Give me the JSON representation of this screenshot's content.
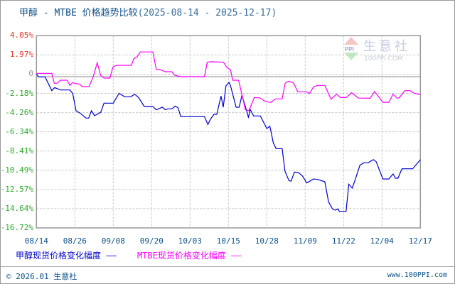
{
  "title": {
    "main": "甲醇 - MTBE 价格趋势比较",
    "range": "(2025-08-14 - 2025-12-17)"
  },
  "watermark": {
    "cn": "生意社",
    "en": "100PPI.COM",
    "badge": "PPI"
  },
  "legend": {
    "series1": "甲醇现货价格变化幅度",
    "series2": "MTBE现货价格变化幅度"
  },
  "footer": {
    "left": "© 2026.01 生意社",
    "right": "www.100PPI.com"
  },
  "colors": {
    "series1": "#0000cc",
    "series2": "#ff00ff",
    "positive_label": "#e8322d",
    "negative_label": "#2fa82f",
    "zero_label": "#999999",
    "grid": "#c8c8c8",
    "axis": "#999999"
  },
  "chart_data": {
    "type": "line",
    "title": "甲醇 - MTBE 价格趋势比较(2025-08-14 - 2025-12-17)",
    "xlabel": "",
    "ylabel": "",
    "ylim": [
      -16.72,
      4.05
    ],
    "yticks": [
      "4.05%",
      "1.97%",
      "0",
      "-2.18%",
      "-4.26%",
      "-6.34%",
      "-8.41%",
      "-10.49%",
      "-12.57%",
      "-14.64%",
      "-16.72%"
    ],
    "ytick_values": [
      4.05,
      1.97,
      0,
      -2.18,
      -4.26,
      -6.34,
      -8.41,
      -10.49,
      -12.57,
      -14.64,
      -16.72
    ],
    "categories": [
      "08/14",
      "08/26",
      "09/08",
      "09/20",
      "10/03",
      "10/15",
      "10/28",
      "11/09",
      "11/22",
      "12/04",
      "12/17"
    ],
    "x_unit": "days since 2025-08-14 (0..125)",
    "grid": true,
    "legend_position": "bottom",
    "series": [
      {
        "name": "甲醇现货价格变化幅度",
        "color": "#0000cc",
        "points": [
          [
            0,
            -0.09
          ],
          [
            0.7,
            -0.4
          ],
          [
            2.8,
            -0.4
          ],
          [
            5,
            -1.89
          ],
          [
            5.9,
            -1.55
          ],
          [
            7.8,
            -1.81
          ],
          [
            10.9,
            -1.81
          ],
          [
            11.8,
            -2.2
          ],
          [
            12.9,
            -4.06
          ],
          [
            14.5,
            -4.39
          ],
          [
            16.1,
            -4.85
          ],
          [
            17,
            -4.85
          ],
          [
            17.9,
            -4.06
          ],
          [
            18.9,
            -4.6
          ],
          [
            20.9,
            -4.24
          ],
          [
            22,
            -3.24
          ],
          [
            25,
            -3.24
          ],
          [
            26.9,
            -2.17
          ],
          [
            28.7,
            -2.55
          ],
          [
            30.7,
            -2.55
          ],
          [
            32,
            -2.27
          ],
          [
            33.3,
            -2.66
          ],
          [
            35.1,
            -3.6
          ],
          [
            37.9,
            -3.6
          ],
          [
            39,
            -3.96
          ],
          [
            41,
            -3.68
          ],
          [
            41.9,
            -3.93
          ],
          [
            42.8,
            -3.85
          ],
          [
            44.1,
            -3.85
          ],
          [
            45.2,
            -3.55
          ],
          [
            46.1,
            -3.75
          ],
          [
            47,
            -4.7
          ],
          [
            54.7,
            -4.7
          ],
          [
            55.8,
            -5.54
          ],
          [
            56.7,
            -4.96
          ],
          [
            57.8,
            -4.44
          ],
          [
            58.7,
            -4.44
          ],
          [
            60.1,
            -2.47
          ],
          [
            60.8,
            -3.68
          ],
          [
            61.7,
            -1.37
          ],
          [
            62.7,
            -0.99
          ],
          [
            63.2,
            -1.37
          ],
          [
            65,
            -3.68
          ],
          [
            66,
            -3.68
          ],
          [
            66.9,
            -2.4
          ],
          [
            68.3,
            -3.93
          ],
          [
            69,
            -4.75
          ],
          [
            69.6,
            -3.93
          ],
          [
            70.7,
            -4.62
          ],
          [
            72.9,
            -4.62
          ],
          [
            75,
            -5.98
          ],
          [
            76,
            -5.73
          ],
          [
            77.1,
            -7.51
          ],
          [
            78,
            -8.15
          ],
          [
            80,
            -8.15
          ],
          [
            80.9,
            -10.58
          ],
          [
            82.2,
            -11.6
          ],
          [
            82.9,
            -11.68
          ],
          [
            84,
            -10.68
          ],
          [
            85.3,
            -10.74
          ],
          [
            86.6,
            -11.1
          ],
          [
            88,
            -11.86
          ],
          [
            90.2,
            -11.43
          ],
          [
            91.5,
            -11.48
          ],
          [
            93.9,
            -11.73
          ],
          [
            95.1,
            -13.9
          ],
          [
            96.4,
            -14.67
          ],
          [
            97.3,
            -14.8
          ],
          [
            98.2,
            -14.67
          ],
          [
            98.6,
            -14.93
          ],
          [
            100.8,
            -14.93
          ],
          [
            101.7,
            -11.99
          ],
          [
            102.8,
            -12.42
          ],
          [
            103.9,
            -11.4
          ],
          [
            105.3,
            -9.95
          ],
          [
            106.6,
            -9.68
          ],
          [
            108,
            -9.68
          ],
          [
            109.7,
            -9.35
          ],
          [
            110.6,
            -9.56
          ],
          [
            112.8,
            -11.43
          ],
          [
            114.7,
            -11.43
          ],
          [
            116.1,
            -10.89
          ],
          [
            116.9,
            -11.35
          ],
          [
            117.7,
            -11.35
          ],
          [
            119,
            -10.33
          ],
          [
            122.5,
            -10.33
          ],
          [
            125,
            -9.35
          ]
        ]
      },
      {
        "name": "MTBE现货价格变化幅度",
        "color": "#ff00ff",
        "points": [
          [
            0,
            -0.02
          ],
          [
            5,
            -0.02
          ],
          [
            5.8,
            -1.09
          ],
          [
            6.7,
            -1.09
          ],
          [
            7.8,
            -0.76
          ],
          [
            10,
            -0.76
          ],
          [
            10.9,
            -1.32
          ],
          [
            11.8,
            -1.01
          ],
          [
            12.7,
            -1.14
          ],
          [
            14,
            -1.17
          ],
          [
            14.9,
            -1.45
          ],
          [
            17.1,
            -1.45
          ],
          [
            18.5,
            -0.35
          ],
          [
            19.8,
            1.13
          ],
          [
            20.9,
            -0.24
          ],
          [
            22,
            -0.53
          ],
          [
            23.9,
            -0.53
          ],
          [
            24.9,
            0.67
          ],
          [
            26,
            0.85
          ],
          [
            30.9,
            0.85
          ],
          [
            31.7,
            1.56
          ],
          [
            32.8,
            1.77
          ],
          [
            33.8,
            2.29
          ],
          [
            37.9,
            2.29
          ],
          [
            39,
            0.41
          ],
          [
            40.1,
            0.41
          ],
          [
            41.9,
            0.16
          ],
          [
            44.1,
            0.16
          ],
          [
            45,
            -0.22
          ],
          [
            46.8,
            -0.38
          ],
          [
            54.7,
            -0.38
          ],
          [
            55.6,
            1.18
          ],
          [
            56.9,
            1.24
          ],
          [
            60.9,
            1.18
          ],
          [
            62,
            0.62
          ],
          [
            63.2,
            0.36
          ],
          [
            63.9,
            -0.76
          ],
          [
            65.8,
            -0.76
          ],
          [
            66.7,
            -2.01
          ],
          [
            68,
            -3.93
          ],
          [
            69.2,
            -4.06
          ],
          [
            70.9,
            -2.63
          ],
          [
            72.7,
            -2.66
          ],
          [
            74.5,
            -3.04
          ],
          [
            76.3,
            -3.17
          ],
          [
            77.8,
            -2.78
          ],
          [
            80,
            -2.78
          ],
          [
            81,
            -1.07
          ],
          [
            82.2,
            -0.86
          ],
          [
            83.7,
            -1.07
          ],
          [
            85.1,
            -2.01
          ],
          [
            88,
            -2.01
          ],
          [
            88.9,
            -2.2
          ],
          [
            90.2,
            -1.48
          ],
          [
            91.5,
            -1.32
          ],
          [
            93.9,
            -1.32
          ],
          [
            95.9,
            -2.81
          ],
          [
            97.7,
            -2.27
          ],
          [
            99,
            -2.63
          ],
          [
            100.8,
            -2.63
          ],
          [
            102.6,
            -2.1
          ],
          [
            104.8,
            -2.69
          ],
          [
            108.6,
            -2.71
          ],
          [
            110.1,
            -1.98
          ],
          [
            112.8,
            -3.15
          ],
          [
            114.7,
            -3.15
          ],
          [
            116.1,
            -2.27
          ],
          [
            117.4,
            -2.71
          ],
          [
            118.1,
            -2.66
          ],
          [
            119.9,
            -1.89
          ],
          [
            121.6,
            -1.89
          ],
          [
            123,
            -2.17
          ],
          [
            125,
            -2.3
          ]
        ]
      }
    ]
  }
}
